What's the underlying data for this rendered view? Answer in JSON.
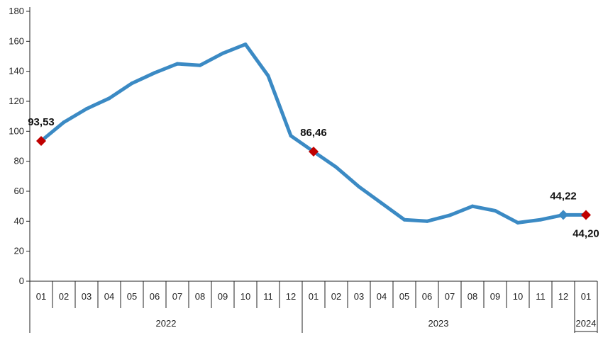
{
  "chart_data": {
    "type": "line",
    "title": "",
    "xlabel": "",
    "ylabel": "",
    "ylim": [
      0,
      180
    ],
    "yticks": [
      0,
      20,
      40,
      60,
      80,
      100,
      120,
      140,
      160,
      180
    ],
    "grid": false,
    "categories": [
      "01",
      "02",
      "03",
      "04",
      "05",
      "06",
      "07",
      "08",
      "09",
      "10",
      "11",
      "12",
      "01",
      "02",
      "03",
      "04",
      "05",
      "06",
      "07",
      "08",
      "09",
      "10",
      "11",
      "12",
      "01"
    ],
    "year_groups": [
      {
        "label": "2022",
        "start": 0,
        "end": 11
      },
      {
        "label": "2023",
        "start": 12,
        "end": 23
      },
      {
        "label": "2024",
        "start": 24,
        "end": 24
      }
    ],
    "series": [
      {
        "color": "#3b8ac4",
        "values": [
          93.53,
          106,
          115,
          122,
          132,
          139,
          145,
          144,
          152,
          158,
          137,
          97,
          86.46,
          76,
          63,
          52,
          41,
          40,
          44,
          50,
          47,
          39,
          41,
          44.22,
          44.2
        ]
      }
    ],
    "annotations": [
      {
        "index": 0,
        "label": "93,53",
        "marker": "diamond",
        "color": "#c00000",
        "pos": "above"
      },
      {
        "index": 12,
        "label": "86,46",
        "marker": "diamond",
        "color": "#c00000",
        "pos": "above"
      },
      {
        "index": 23,
        "label": "44,22",
        "marker": "diamond",
        "color": "#3b8ac4",
        "pos": "above"
      },
      {
        "index": 24,
        "label": "44,20",
        "marker": "diamond",
        "color": "#c00000",
        "pos": "below"
      }
    ]
  }
}
